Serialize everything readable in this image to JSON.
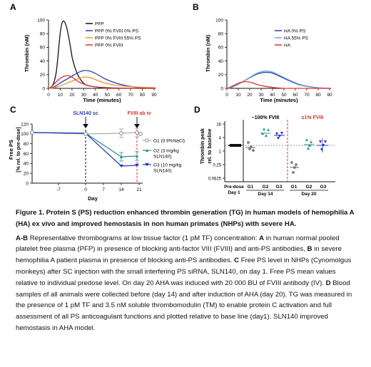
{
  "figure": {
    "panelA": {
      "letter": "A",
      "ylabel": "Thrombin (nM)",
      "xlabel": "Time (minutes)",
      "yticks": [
        "0",
        "20",
        "40",
        "60",
        "80",
        "100"
      ],
      "xticks": [
        "0",
        "10",
        "20",
        "30",
        "40",
        "50",
        "60",
        "70",
        "80",
        "90"
      ],
      "legend": [
        "PFP",
        "PFP 0% FVIII 0% PS",
        "PFP 0% FVIII 55% PS",
        "PFP 0% FVIII"
      ],
      "colors": [
        "#111111",
        "#2b3fb0",
        "#e39a2a",
        "#e0302b"
      ]
    },
    "panelB": {
      "letter": "B",
      "ylabel": "Thrombin (nM)",
      "xlabel": "Time (minutes)",
      "yticks": [
        "0",
        "20",
        "40",
        "60",
        "80",
        "100"
      ],
      "xticks": [
        "0",
        "10",
        "20",
        "30",
        "40",
        "50",
        "60",
        "70",
        "80",
        "90"
      ],
      "legend": [
        "HA 0% PS",
        "HA 55% PS",
        "HA"
      ],
      "colors": [
        "#2b3fb0",
        "#6fa4d8",
        "#e0302b"
      ]
    },
    "panelC": {
      "letter": "C",
      "ylabel_line1": "Free PS",
      "ylabel_line2": "[% rel. to pre-dose]",
      "xlabel": "Day",
      "yticks": [
        "0",
        "20",
        "40",
        "60",
        "80",
        "100",
        "120"
      ],
      "xticks": [
        "-7",
        "0",
        "7",
        "14",
        "21"
      ],
      "annot_sc": "SLN140 sc",
      "annot_iv": "FVIII ab iv",
      "legend": [
        "G1 (0.9%NaCl)",
        "G2 (3 mg/kg",
        "SLN140)",
        "G3 (10 mg/kg",
        "SLN140)"
      ]
    },
    "panelD": {
      "letter": "D",
      "ylabel_line1": "Thrombin peak",
      "ylabel_line2": "rel. to baseline",
      "yticks": [
        "16",
        "4",
        "1",
        "0.25",
        "0.0625"
      ],
      "group_left": "~100% FVIII",
      "group_right": "≤1% FVIII",
      "xcats": [
        "Pre-dose",
        "G1",
        "G2",
        "G3",
        "G1",
        "G2",
        "G3"
      ],
      "xsub": [
        "Day 1",
        "Day 14",
        "Day 20"
      ]
    }
  },
  "caption": {
    "title": "Figure 1. Protein S (PS) reduction enhanced thrombin generation (TG) in human models of hemophilia A (HA) ex vivo and improved hemostasis in non human primates (NHPs) with severe HA.",
    "body_1": "A-B",
    "body_2": " Representative thrombograms at low tissue factor (1 pM TF) concentration: ",
    "body_3": "A",
    "body_4": " in human normal pooled platelet free plasma (PFP) in presence of blocking anti-factor VIII (FVIII) and anti-PS antibodies, ",
    "body_5": "B",
    "body_6": " in severe hemophilia A patient plasma in presence of blocking anti-PS antibodies. ",
    "body_7": "C",
    "body_8": " Free PS level in NHPs (Cynomolgus monkeys) after SC injection with the small interfering PS siRNA, SLN140, on day 1. Free PS mean values relative to individual predose level. On day 20 AHA was induced with 20 000 BU of FVIII antibody (IV). ",
    "body_9": "D",
    "body_10": " Blood samples of all animals were collected before (day 14) and after induction of AHA (day 20). TG was measured in the presence of 1 pM TF and 3.5 nM soluble thrombomodulin (TM) to enable protein C activation and full assessment of all PS anticoagulant functions and plotted relative to base line (day1). SLN140 improved hemostasis in AHA model."
  }
}
